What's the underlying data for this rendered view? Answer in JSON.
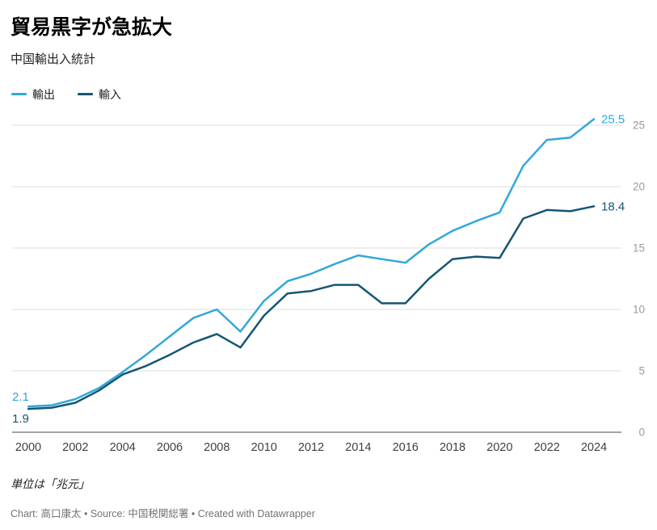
{
  "chart_data": {
    "type": "line",
    "title": "貿易黒字が急拡大",
    "subtitle": "中国輸出入統計",
    "x": [
      2000,
      2001,
      2002,
      2003,
      2004,
      2005,
      2006,
      2007,
      2008,
      2009,
      2010,
      2011,
      2012,
      2013,
      2014,
      2015,
      2016,
      2017,
      2018,
      2019,
      2020,
      2021,
      2022,
      2023,
      2024
    ],
    "xticks": [
      2000,
      2002,
      2004,
      2006,
      2008,
      2010,
      2012,
      2014,
      2016,
      2018,
      2020,
      2022,
      2024
    ],
    "yticks": [
      0,
      5,
      10,
      15,
      20,
      25
    ],
    "ylim": [
      0,
      25.5
    ],
    "grid": true,
    "y_axis_side": "right",
    "legend_position": "top-left",
    "series": [
      {
        "key": "export",
        "name": "輸出",
        "color": "#31a8d9",
        "values": [
          2.1,
          2.2,
          2.7,
          3.6,
          4.9,
          6.3,
          7.8,
          9.3,
          10.0,
          8.2,
          10.7,
          12.3,
          12.9,
          13.7,
          14.4,
          14.1,
          13.8,
          15.3,
          16.4,
          17.2,
          17.9,
          21.7,
          23.8,
          24.0,
          25.5
        ],
        "start_label": "2.1",
        "end_label": "25.5",
        "start_label_position": "above"
      },
      {
        "key": "import",
        "name": "輸入",
        "color": "#155673",
        "values": [
          1.9,
          2.0,
          2.4,
          3.4,
          4.7,
          5.4,
          6.3,
          7.3,
          8.0,
          6.9,
          9.5,
          11.3,
          11.5,
          12.0,
          12.0,
          10.5,
          10.5,
          12.5,
          14.1,
          14.3,
          14.2,
          17.4,
          18.1,
          18.0,
          18.4
        ],
        "start_label": "1.9",
        "end_label": "18.4",
        "start_label_position": "below"
      }
    ],
    "style": {
      "grid_color": "#dddddd",
      "baseline_color": "#4a4a4a",
      "y_tick_color": "#9b9b9b",
      "x_tick_color": "#404040"
    }
  },
  "footer": {
    "note": "単位は「兆元」",
    "credit": "Chart: 高口康太 • Source: 中国税関総署 • Created with Datawrapper"
  }
}
